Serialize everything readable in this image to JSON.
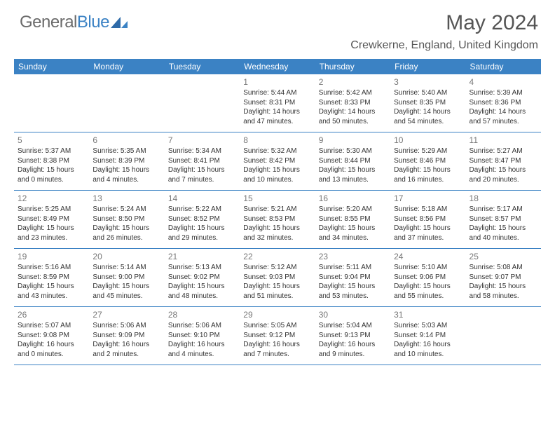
{
  "logo": {
    "text1": "General",
    "text2": "Blue"
  },
  "title": "May 2024",
  "subtitle": "Crewkerne, England, United Kingdom",
  "colors": {
    "header_bg": "#3b82c4",
    "header_text": "#ffffff",
    "border": "#3b82c4",
    "daynum": "#777777",
    "body_text": "#333333",
    "logo_gray": "#6b6b6b",
    "logo_blue": "#3b82c4",
    "background": "#ffffff"
  },
  "typography": {
    "title_fontsize": 30,
    "subtitle_fontsize": 16,
    "weekday_fontsize": 12,
    "daynum_fontsize": 12,
    "cell_fontsize": 10,
    "font_family": "Arial"
  },
  "weekdays": [
    "Sunday",
    "Monday",
    "Tuesday",
    "Wednesday",
    "Thursday",
    "Friday",
    "Saturday"
  ],
  "weeks": [
    [
      {
        "empty": true
      },
      {
        "empty": true
      },
      {
        "empty": true
      },
      {
        "n": "1",
        "sr": "Sunrise: 5:44 AM",
        "ss": "Sunset: 8:31 PM",
        "d1": "Daylight: 14 hours",
        "d2": "and 47 minutes."
      },
      {
        "n": "2",
        "sr": "Sunrise: 5:42 AM",
        "ss": "Sunset: 8:33 PM",
        "d1": "Daylight: 14 hours",
        "d2": "and 50 minutes."
      },
      {
        "n": "3",
        "sr": "Sunrise: 5:40 AM",
        "ss": "Sunset: 8:35 PM",
        "d1": "Daylight: 14 hours",
        "d2": "and 54 minutes."
      },
      {
        "n": "4",
        "sr": "Sunrise: 5:39 AM",
        "ss": "Sunset: 8:36 PM",
        "d1": "Daylight: 14 hours",
        "d2": "and 57 minutes."
      }
    ],
    [
      {
        "n": "5",
        "sr": "Sunrise: 5:37 AM",
        "ss": "Sunset: 8:38 PM",
        "d1": "Daylight: 15 hours",
        "d2": "and 0 minutes."
      },
      {
        "n": "6",
        "sr": "Sunrise: 5:35 AM",
        "ss": "Sunset: 8:39 PM",
        "d1": "Daylight: 15 hours",
        "d2": "and 4 minutes."
      },
      {
        "n": "7",
        "sr": "Sunrise: 5:34 AM",
        "ss": "Sunset: 8:41 PM",
        "d1": "Daylight: 15 hours",
        "d2": "and 7 minutes."
      },
      {
        "n": "8",
        "sr": "Sunrise: 5:32 AM",
        "ss": "Sunset: 8:42 PM",
        "d1": "Daylight: 15 hours",
        "d2": "and 10 minutes."
      },
      {
        "n": "9",
        "sr": "Sunrise: 5:30 AM",
        "ss": "Sunset: 8:44 PM",
        "d1": "Daylight: 15 hours",
        "d2": "and 13 minutes."
      },
      {
        "n": "10",
        "sr": "Sunrise: 5:29 AM",
        "ss": "Sunset: 8:46 PM",
        "d1": "Daylight: 15 hours",
        "d2": "and 16 minutes."
      },
      {
        "n": "11",
        "sr": "Sunrise: 5:27 AM",
        "ss": "Sunset: 8:47 PM",
        "d1": "Daylight: 15 hours",
        "d2": "and 20 minutes."
      }
    ],
    [
      {
        "n": "12",
        "sr": "Sunrise: 5:25 AM",
        "ss": "Sunset: 8:49 PM",
        "d1": "Daylight: 15 hours",
        "d2": "and 23 minutes."
      },
      {
        "n": "13",
        "sr": "Sunrise: 5:24 AM",
        "ss": "Sunset: 8:50 PM",
        "d1": "Daylight: 15 hours",
        "d2": "and 26 minutes."
      },
      {
        "n": "14",
        "sr": "Sunrise: 5:22 AM",
        "ss": "Sunset: 8:52 PM",
        "d1": "Daylight: 15 hours",
        "d2": "and 29 minutes."
      },
      {
        "n": "15",
        "sr": "Sunrise: 5:21 AM",
        "ss": "Sunset: 8:53 PM",
        "d1": "Daylight: 15 hours",
        "d2": "and 32 minutes."
      },
      {
        "n": "16",
        "sr": "Sunrise: 5:20 AM",
        "ss": "Sunset: 8:55 PM",
        "d1": "Daylight: 15 hours",
        "d2": "and 34 minutes."
      },
      {
        "n": "17",
        "sr": "Sunrise: 5:18 AM",
        "ss": "Sunset: 8:56 PM",
        "d1": "Daylight: 15 hours",
        "d2": "and 37 minutes."
      },
      {
        "n": "18",
        "sr": "Sunrise: 5:17 AM",
        "ss": "Sunset: 8:57 PM",
        "d1": "Daylight: 15 hours",
        "d2": "and 40 minutes."
      }
    ],
    [
      {
        "n": "19",
        "sr": "Sunrise: 5:16 AM",
        "ss": "Sunset: 8:59 PM",
        "d1": "Daylight: 15 hours",
        "d2": "and 43 minutes."
      },
      {
        "n": "20",
        "sr": "Sunrise: 5:14 AM",
        "ss": "Sunset: 9:00 PM",
        "d1": "Daylight: 15 hours",
        "d2": "and 45 minutes."
      },
      {
        "n": "21",
        "sr": "Sunrise: 5:13 AM",
        "ss": "Sunset: 9:02 PM",
        "d1": "Daylight: 15 hours",
        "d2": "and 48 minutes."
      },
      {
        "n": "22",
        "sr": "Sunrise: 5:12 AM",
        "ss": "Sunset: 9:03 PM",
        "d1": "Daylight: 15 hours",
        "d2": "and 51 minutes."
      },
      {
        "n": "23",
        "sr": "Sunrise: 5:11 AM",
        "ss": "Sunset: 9:04 PM",
        "d1": "Daylight: 15 hours",
        "d2": "and 53 minutes."
      },
      {
        "n": "24",
        "sr": "Sunrise: 5:10 AM",
        "ss": "Sunset: 9:06 PM",
        "d1": "Daylight: 15 hours",
        "d2": "and 55 minutes."
      },
      {
        "n": "25",
        "sr": "Sunrise: 5:08 AM",
        "ss": "Sunset: 9:07 PM",
        "d1": "Daylight: 15 hours",
        "d2": "and 58 minutes."
      }
    ],
    [
      {
        "n": "26",
        "sr": "Sunrise: 5:07 AM",
        "ss": "Sunset: 9:08 PM",
        "d1": "Daylight: 16 hours",
        "d2": "and 0 minutes."
      },
      {
        "n": "27",
        "sr": "Sunrise: 5:06 AM",
        "ss": "Sunset: 9:09 PM",
        "d1": "Daylight: 16 hours",
        "d2": "and 2 minutes."
      },
      {
        "n": "28",
        "sr": "Sunrise: 5:06 AM",
        "ss": "Sunset: 9:10 PM",
        "d1": "Daylight: 16 hours",
        "d2": "and 4 minutes."
      },
      {
        "n": "29",
        "sr": "Sunrise: 5:05 AM",
        "ss": "Sunset: 9:12 PM",
        "d1": "Daylight: 16 hours",
        "d2": "and 7 minutes."
      },
      {
        "n": "30",
        "sr": "Sunrise: 5:04 AM",
        "ss": "Sunset: 9:13 PM",
        "d1": "Daylight: 16 hours",
        "d2": "and 9 minutes."
      },
      {
        "n": "31",
        "sr": "Sunrise: 5:03 AM",
        "ss": "Sunset: 9:14 PM",
        "d1": "Daylight: 16 hours",
        "d2": "and 10 minutes."
      },
      {
        "empty": true
      }
    ]
  ]
}
